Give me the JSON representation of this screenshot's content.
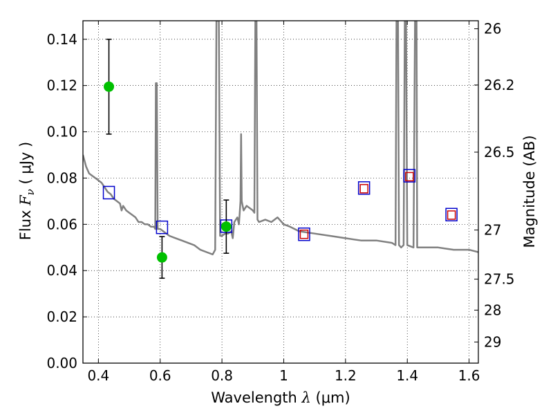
{
  "chart_data": {
    "type": "scatter",
    "xlabel": {
      "prefix": "Wavelength  ",
      "symbol": "λ",
      "unit": " (μm)"
    },
    "ylabel": {
      "prefix": "Flux  ",
      "symbol": "F",
      "subscript": "ν",
      "unit": "  (  μJy  )"
    },
    "y2label": "Magnitude (AB)",
    "xlim": [
      0.35,
      1.63
    ],
    "ylim": [
      0.0,
      0.148
    ],
    "xticks": [
      0.4,
      0.6,
      0.8,
      1.0,
      1.2,
      1.4,
      1.6
    ],
    "xtick_labels": [
      "0.4",
      "0.6",
      "0.8",
      "1",
      "1.2",
      "1.4",
      "1.6"
    ],
    "yticks": [
      0.0,
      0.02,
      0.04,
      0.06,
      0.08,
      0.1,
      0.12,
      0.14
    ],
    "ytick_labels": [
      "0.00",
      "0.02",
      "0.04",
      "0.06",
      "0.08",
      "0.10",
      "0.12",
      "0.14"
    ],
    "y2ticks": [
      {
        "mag": 26,
        "label": "26"
      },
      {
        "mag": 26.2,
        "label": "26.2"
      },
      {
        "mag": 26.5,
        "label": "26.5"
      },
      {
        "mag": 27,
        "label": "27"
      },
      {
        "mag": 27.5,
        "label": "27.5"
      },
      {
        "mag": 28,
        "label": "28"
      },
      {
        "mag": 29,
        "label": "29"
      }
    ],
    "grid": true,
    "colors": {
      "model": "#808080",
      "observed": "#00c000",
      "error": "#000000",
      "model_box": "#0000cc",
      "inner_box": "#cc0000"
    },
    "series": [
      {
        "type": "line",
        "points": [
          [
            0.35,
            0.09
          ],
          [
            0.36,
            0.085
          ],
          [
            0.37,
            0.082
          ],
          [
            0.38,
            0.081
          ],
          [
            0.39,
            0.08
          ],
          [
            0.4,
            0.079
          ],
          [
            0.41,
            0.078
          ],
          [
            0.42,
            0.076
          ],
          [
            0.43,
            0.074
          ],
          [
            0.44,
            0.073
          ],
          [
            0.45,
            0.071
          ],
          [
            0.46,
            0.07
          ],
          [
            0.47,
            0.069
          ],
          [
            0.475,
            0.066
          ],
          [
            0.48,
            0.068
          ],
          [
            0.49,
            0.066
          ],
          [
            0.5,
            0.065
          ],
          [
            0.51,
            0.064
          ],
          [
            0.52,
            0.063
          ],
          [
            0.53,
            0.061
          ],
          [
            0.54,
            0.061
          ],
          [
            0.55,
            0.06
          ],
          [
            0.56,
            0.06
          ],
          [
            0.57,
            0.059
          ],
          [
            0.58,
            0.059
          ],
          [
            0.584,
            0.058
          ],
          [
            0.586,
            0.121
          ],
          [
            0.589,
            0.121
          ],
          [
            0.592,
            0.058
          ],
          [
            0.6,
            0.058
          ],
          [
            0.61,
            0.057
          ],
          [
            0.62,
            0.056
          ],
          [
            0.63,
            0.055
          ],
          [
            0.65,
            0.054
          ],
          [
            0.67,
            0.053
          ],
          [
            0.69,
            0.052
          ],
          [
            0.71,
            0.051
          ],
          [
            0.73,
            0.049
          ],
          [
            0.75,
            0.048
          ],
          [
            0.77,
            0.047
          ],
          [
            0.778,
            0.049
          ],
          [
            0.782,
            0.148
          ],
          [
            0.79,
            0.148
          ],
          [
            0.794,
            0.055
          ],
          [
            0.8,
            0.055
          ],
          [
            0.81,
            0.056
          ],
          [
            0.82,
            0.056
          ],
          [
            0.83,
            0.057
          ],
          [
            0.835,
            0.054
          ],
          [
            0.84,
            0.061
          ],
          [
            0.85,
            0.063
          ],
          [
            0.855,
            0.06
          ],
          [
            0.86,
            0.07
          ],
          [
            0.862,
            0.099
          ],
          [
            0.864,
            0.07
          ],
          [
            0.87,
            0.066
          ],
          [
            0.88,
            0.068
          ],
          [
            0.89,
            0.067
          ],
          [
            0.9,
            0.066
          ],
          [
            0.905,
            0.065
          ],
          [
            0.908,
            0.148
          ],
          [
            0.912,
            0.148
          ],
          [
            0.915,
            0.062
          ],
          [
            0.92,
            0.061
          ],
          [
            0.94,
            0.062
          ],
          [
            0.96,
            0.061
          ],
          [
            0.98,
            0.063
          ],
          [
            1.0,
            0.06
          ],
          [
            1.02,
            0.059
          ],
          [
            1.05,
            0.057
          ],
          [
            1.1,
            0.056
          ],
          [
            1.15,
            0.055
          ],
          [
            1.2,
            0.054
          ],
          [
            1.25,
            0.053
          ],
          [
            1.3,
            0.053
          ],
          [
            1.35,
            0.052
          ],
          [
            1.362,
            0.051
          ],
          [
            1.365,
            0.148
          ],
          [
            1.37,
            0.148
          ],
          [
            1.373,
            0.051
          ],
          [
            1.38,
            0.05
          ],
          [
            1.388,
            0.051
          ],
          [
            1.392,
            0.148
          ],
          [
            1.396,
            0.148
          ],
          [
            1.4,
            0.051
          ],
          [
            1.42,
            0.05
          ],
          [
            1.425,
            0.148
          ],
          [
            1.43,
            0.148
          ],
          [
            1.432,
            0.05
          ],
          [
            1.45,
            0.05
          ],
          [
            1.5,
            0.05
          ],
          [
            1.55,
            0.049
          ],
          [
            1.6,
            0.049
          ],
          [
            1.63,
            0.048
          ]
        ]
      },
      {
        "type": "scatter",
        "marker": "circle",
        "points": [
          {
            "x": 0.434,
            "y": 0.1195,
            "err": 0.0205
          },
          {
            "x": 0.606,
            "y": 0.0457,
            "err": 0.009
          },
          {
            "x": 0.814,
            "y": 0.059,
            "err": 0.0115
          }
        ]
      },
      {
        "type": "scatter",
        "marker": "square",
        "points": [
          {
            "x": 0.434,
            "y": 0.0737
          },
          {
            "x": 0.606,
            "y": 0.0587
          },
          {
            "x": 0.814,
            "y": 0.0592
          },
          {
            "x": 1.066,
            "y": 0.0557
          },
          {
            "x": 1.26,
            "y": 0.0757
          },
          {
            "x": 1.407,
            "y": 0.081
          },
          {
            "x": 1.543,
            "y": 0.0642
          }
        ]
      },
      {
        "type": "scatter",
        "marker": "square",
        "points": [
          {
            "x": 1.066,
            "y": 0.0557
          },
          {
            "x": 1.26,
            "y": 0.0754
          },
          {
            "x": 1.407,
            "y": 0.0806
          },
          {
            "x": 1.543,
            "y": 0.064
          }
        ]
      }
    ]
  }
}
